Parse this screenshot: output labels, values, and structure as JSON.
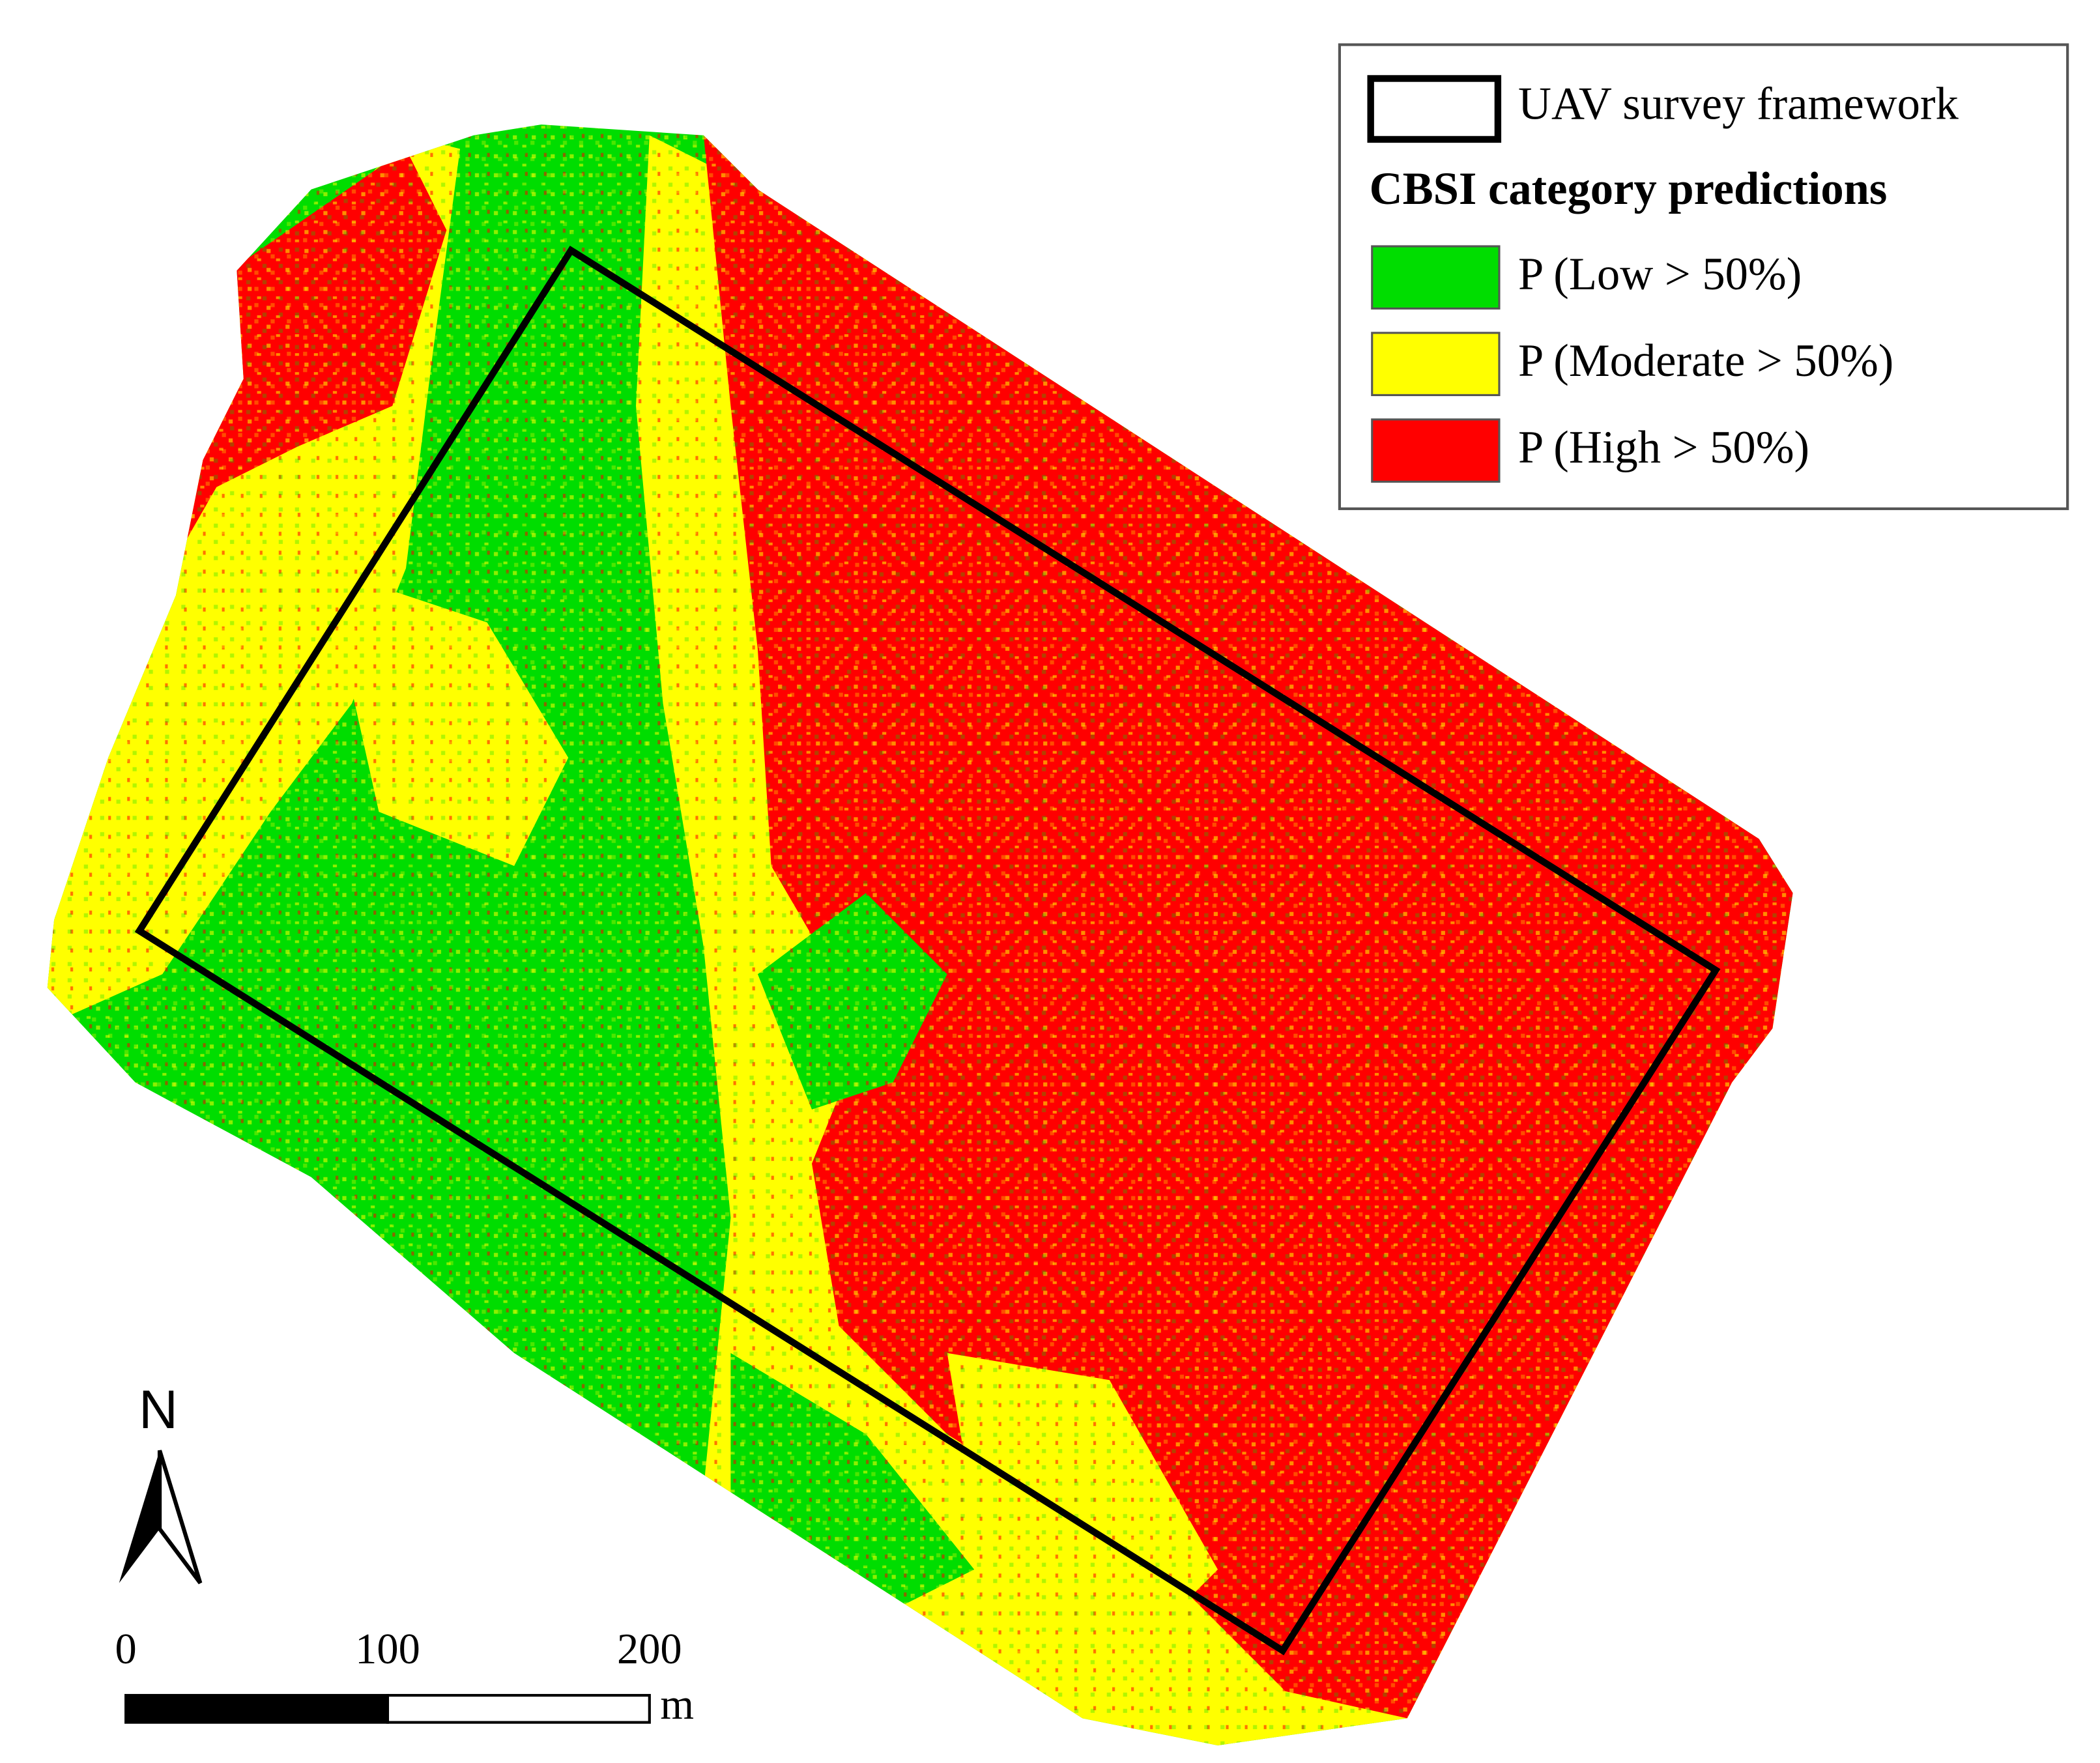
{
  "legend": {
    "framework_label": "UAV survey framework",
    "title": "CBSI category predictions",
    "items": [
      {
        "label": "P (Low > 50%)",
        "color": "#00dd00"
      },
      {
        "label": "P (Moderate > 50%)",
        "color": "#ffff00"
      },
      {
        "label": "P (High > 50%)",
        "color": "#ff0000"
      }
    ]
  },
  "north_arrow": {
    "label": "N"
  },
  "scale_bar": {
    "ticks": [
      0,
      100,
      200
    ],
    "unit": "m"
  }
}
